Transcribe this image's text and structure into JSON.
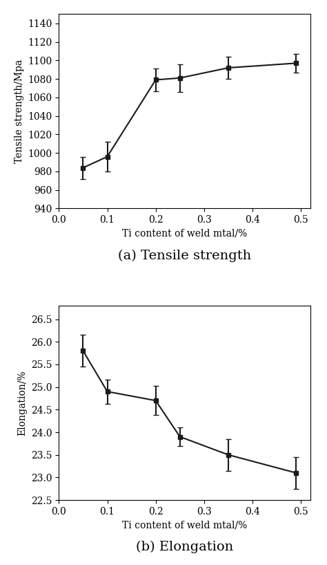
{
  "chart_data": [
    {
      "type": "line",
      "title": "(a) Tensile strength",
      "xlabel": "Ti content of weld mtal/%",
      "ylabel": "Tensile strength/Mpa",
      "x": [
        0.05,
        0.1,
        0.2,
        0.25,
        0.35,
        0.49
      ],
      "values": [
        984,
        996,
        1079,
        1081,
        1092,
        1097
      ],
      "errors": [
        12,
        16,
        12,
        15,
        12,
        10
      ],
      "xlim": [
        0.0,
        0.52
      ],
      "xticks": [
        0.0,
        0.1,
        0.2,
        0.3,
        0.4,
        0.5
      ],
      "ylim": [
        940,
        1150
      ],
      "yticks": [
        940,
        960,
        980,
        1000,
        1020,
        1040,
        1060,
        1080,
        1100,
        1120,
        1140
      ],
      "color": "#1a1a1a",
      "marker": "square",
      "line_style": "solid",
      "grid": false
    },
    {
      "type": "line",
      "title": "(b) Elongation",
      "xlabel": "Ti content of weld mtal/%",
      "ylabel": "Elongation/%",
      "x": [
        0.05,
        0.1,
        0.2,
        0.25,
        0.35,
        0.49
      ],
      "values": [
        25.8,
        24.9,
        24.7,
        23.9,
        23.5,
        23.1
      ],
      "errors": [
        0.35,
        0.27,
        0.32,
        0.2,
        0.35,
        0.35
      ],
      "xlim": [
        0.0,
        0.52
      ],
      "xticks": [
        0.0,
        0.1,
        0.2,
        0.3,
        0.4,
        0.5
      ],
      "ylim": [
        22.5,
        26.8
      ],
      "yticks": [
        22.5,
        23.0,
        23.5,
        24.0,
        24.5,
        25.0,
        25.5,
        26.0,
        26.5
      ],
      "color": "#1a1a1a",
      "marker": "square",
      "line_style": "solid",
      "grid": false
    }
  ]
}
